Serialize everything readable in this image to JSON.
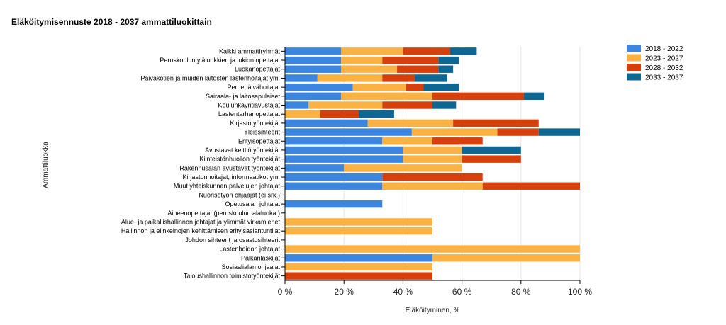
{
  "title": "Eläköitymisennuste 2018 - 2037 ammattiluokittain",
  "chart_data": {
    "type": "bar",
    "orientation": "horizontal",
    "stacked": true,
    "title": "Eläköitymisennuste 2018 - 2037 ammattiluokittain",
    "xlabel": "Eläköityminen, %",
    "ylabel": "Ammattiluokka",
    "xlim": [
      0,
      100
    ],
    "xticks": [
      "0 %",
      "20 %",
      "40 %",
      "60 %",
      "80 %",
      "100 %"
    ],
    "grid": "vertical",
    "legend_position": "top-right",
    "categories": [
      "Kaikki ammattiryhmät",
      "Peruskoulun yläluokkien ja lukion opettajat",
      "Luokanopettajat",
      "Päiväkotien ja muiden laitosten lastenhoitajat ym.",
      "Perhepäivähoitajat",
      "Sairaala- ja laitosapulaiset",
      "Koulunkäyntiavustajat",
      "Lastentarhanopettajat",
      "Kirjastotyöntekijät",
      "Yleissihteerit",
      "Erityisopettajat",
      "Avustavat keittiötyöntekijät",
      "Kiinteistönhuollon työntekijät",
      "Rakennusalan avustavat työntekijät",
      "Kirjastonhoitajat, informaatikot ym.",
      "Muut yhteiskunnan palvelujen johtajat",
      "Nuorisotyön ohjaajat (ei srk.)",
      "Opetusalan johtajat",
      "Aineenopettajat (peruskoulun alaluokat)",
      "Alue- ja paikallishallinnon johtajat ja ylimmät virkamiehet",
      "Hallinnon ja elinkeinojen kehittämisen erityisasiantuntijat",
      "Johdon sihteerit ja osastosihteerit",
      "Lastenhoidon johtajat",
      "Palkanlaskijat",
      "Sosiaalialan ohjaajat",
      "Taloushallinnon toimistotyöntekijät"
    ],
    "series": [
      {
        "name": "2018 - 2022",
        "color": "#3d86e0",
        "values": [
          19,
          19,
          19,
          11,
          23,
          19,
          8,
          0,
          28,
          43,
          33,
          40,
          40,
          20,
          33,
          33,
          0,
          33,
          0,
          0,
          0,
          0,
          0,
          50,
          0,
          0
        ]
      },
      {
        "name": "2023 - 2027",
        "color": "#f9b243",
        "values": [
          21,
          14,
          19,
          22,
          18,
          31,
          25,
          12,
          29,
          29,
          17,
          20,
          20,
          40,
          0,
          34,
          0,
          0,
          0,
          50,
          50,
          0,
          100,
          50,
          50,
          0
        ]
      },
      {
        "name": "2028 - 2032",
        "color": "#d6400d",
        "values": [
          16,
          19,
          14,
          11,
          6,
          31,
          17,
          13,
          29,
          14,
          17,
          0,
          20,
          0,
          34,
          33,
          0,
          0,
          0,
          0,
          0,
          0,
          0,
          0,
          0,
          50
        ]
      },
      {
        "name": "2033 - 2037",
        "color": "#0d6792",
        "values": [
          9,
          7,
          5,
          11,
          12,
          7,
          8,
          12,
          0,
          14,
          0,
          20,
          0,
          0,
          0,
          0,
          0,
          0,
          0,
          0,
          0,
          0,
          0,
          0,
          0,
          0
        ]
      }
    ]
  }
}
